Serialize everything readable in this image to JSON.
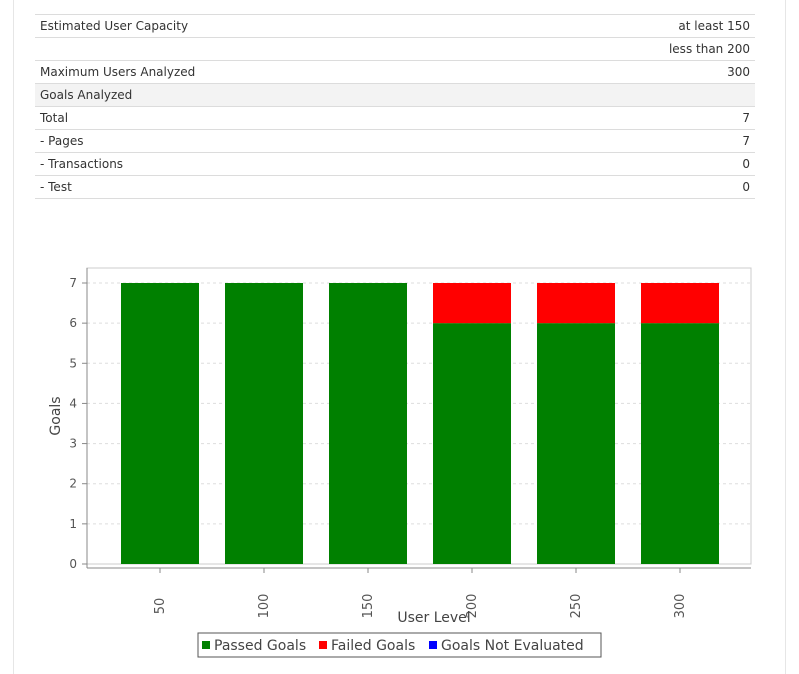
{
  "summary": {
    "rows": [
      {
        "label": "Estimated User Capacity",
        "value": "at least 150"
      },
      {
        "label": "",
        "value": "less than 200"
      },
      {
        "label": "Maximum Users Analyzed",
        "value": "300"
      },
      {
        "label": "Goals Analyzed",
        "value": ""
      },
      {
        "label": "Total",
        "value": "7"
      },
      {
        "label": "- Pages",
        "value": "7"
      },
      {
        "label": "- Transactions",
        "value": "0"
      },
      {
        "label": "- Test",
        "value": "0"
      }
    ]
  },
  "colors": {
    "passed": "#008000",
    "failed": "#ff0000",
    "not_evaluated": "#0000ff"
  },
  "chart_data": {
    "type": "bar",
    "stacked": true,
    "categories": [
      "50",
      "100",
      "150",
      "200",
      "250",
      "300"
    ],
    "series": [
      {
        "name": "Passed Goals",
        "values": [
          7,
          7,
          7,
          6,
          6,
          6
        ],
        "color": "#008000"
      },
      {
        "name": "Failed Goals",
        "values": [
          0,
          0,
          0,
          1,
          1,
          1
        ],
        "color": "#ff0000"
      },
      {
        "name": "Goals Not Evaluated",
        "values": [
          0,
          0,
          0,
          0,
          0,
          0
        ],
        "color": "#0000ff"
      }
    ],
    "xlabel": "User Level",
    "ylabel": "Goals",
    "ylim": [
      0,
      7
    ],
    "yticks": [
      "0",
      "1",
      "2",
      "3",
      "4",
      "5",
      "6",
      "7"
    ],
    "grid": true,
    "legend": "bottom-center"
  }
}
